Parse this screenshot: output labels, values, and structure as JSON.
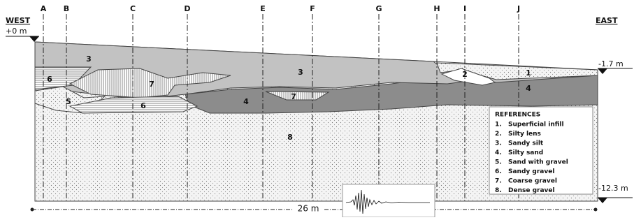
{
  "header": {
    "west": "WEST",
    "east": "EAST"
  },
  "sections": [
    "A",
    "B",
    "C",
    "D",
    "E",
    "F",
    "G",
    "H",
    "I",
    "J"
  ],
  "depths": [
    "+0 m",
    "-1.7 m",
    "-12.3 m"
  ],
  "length": "26 m",
  "layer_labels": [
    "3",
    "6",
    "7",
    "5",
    "6",
    "3",
    "7",
    "4",
    "2",
    "1",
    "4",
    "8"
  ],
  "references": {
    "title": "REFERENCES",
    "items": [
      {
        "number": "1.",
        "name": "Superficial infill"
      },
      {
        "number": "2.",
        "name": "Silty lens"
      },
      {
        "number": "3.",
        "name": "Sandy silt"
      },
      {
        "number": "4.",
        "name": "Silty sand"
      },
      {
        "number": "5.",
        "name": "Sand with gravel"
      },
      {
        "number": "6.",
        "name": "Sandy gravel"
      },
      {
        "number": "7.",
        "name": "Coarse gravel"
      },
      {
        "number": "8.",
        "name": "Dense gravel"
      }
    ]
  }
}
